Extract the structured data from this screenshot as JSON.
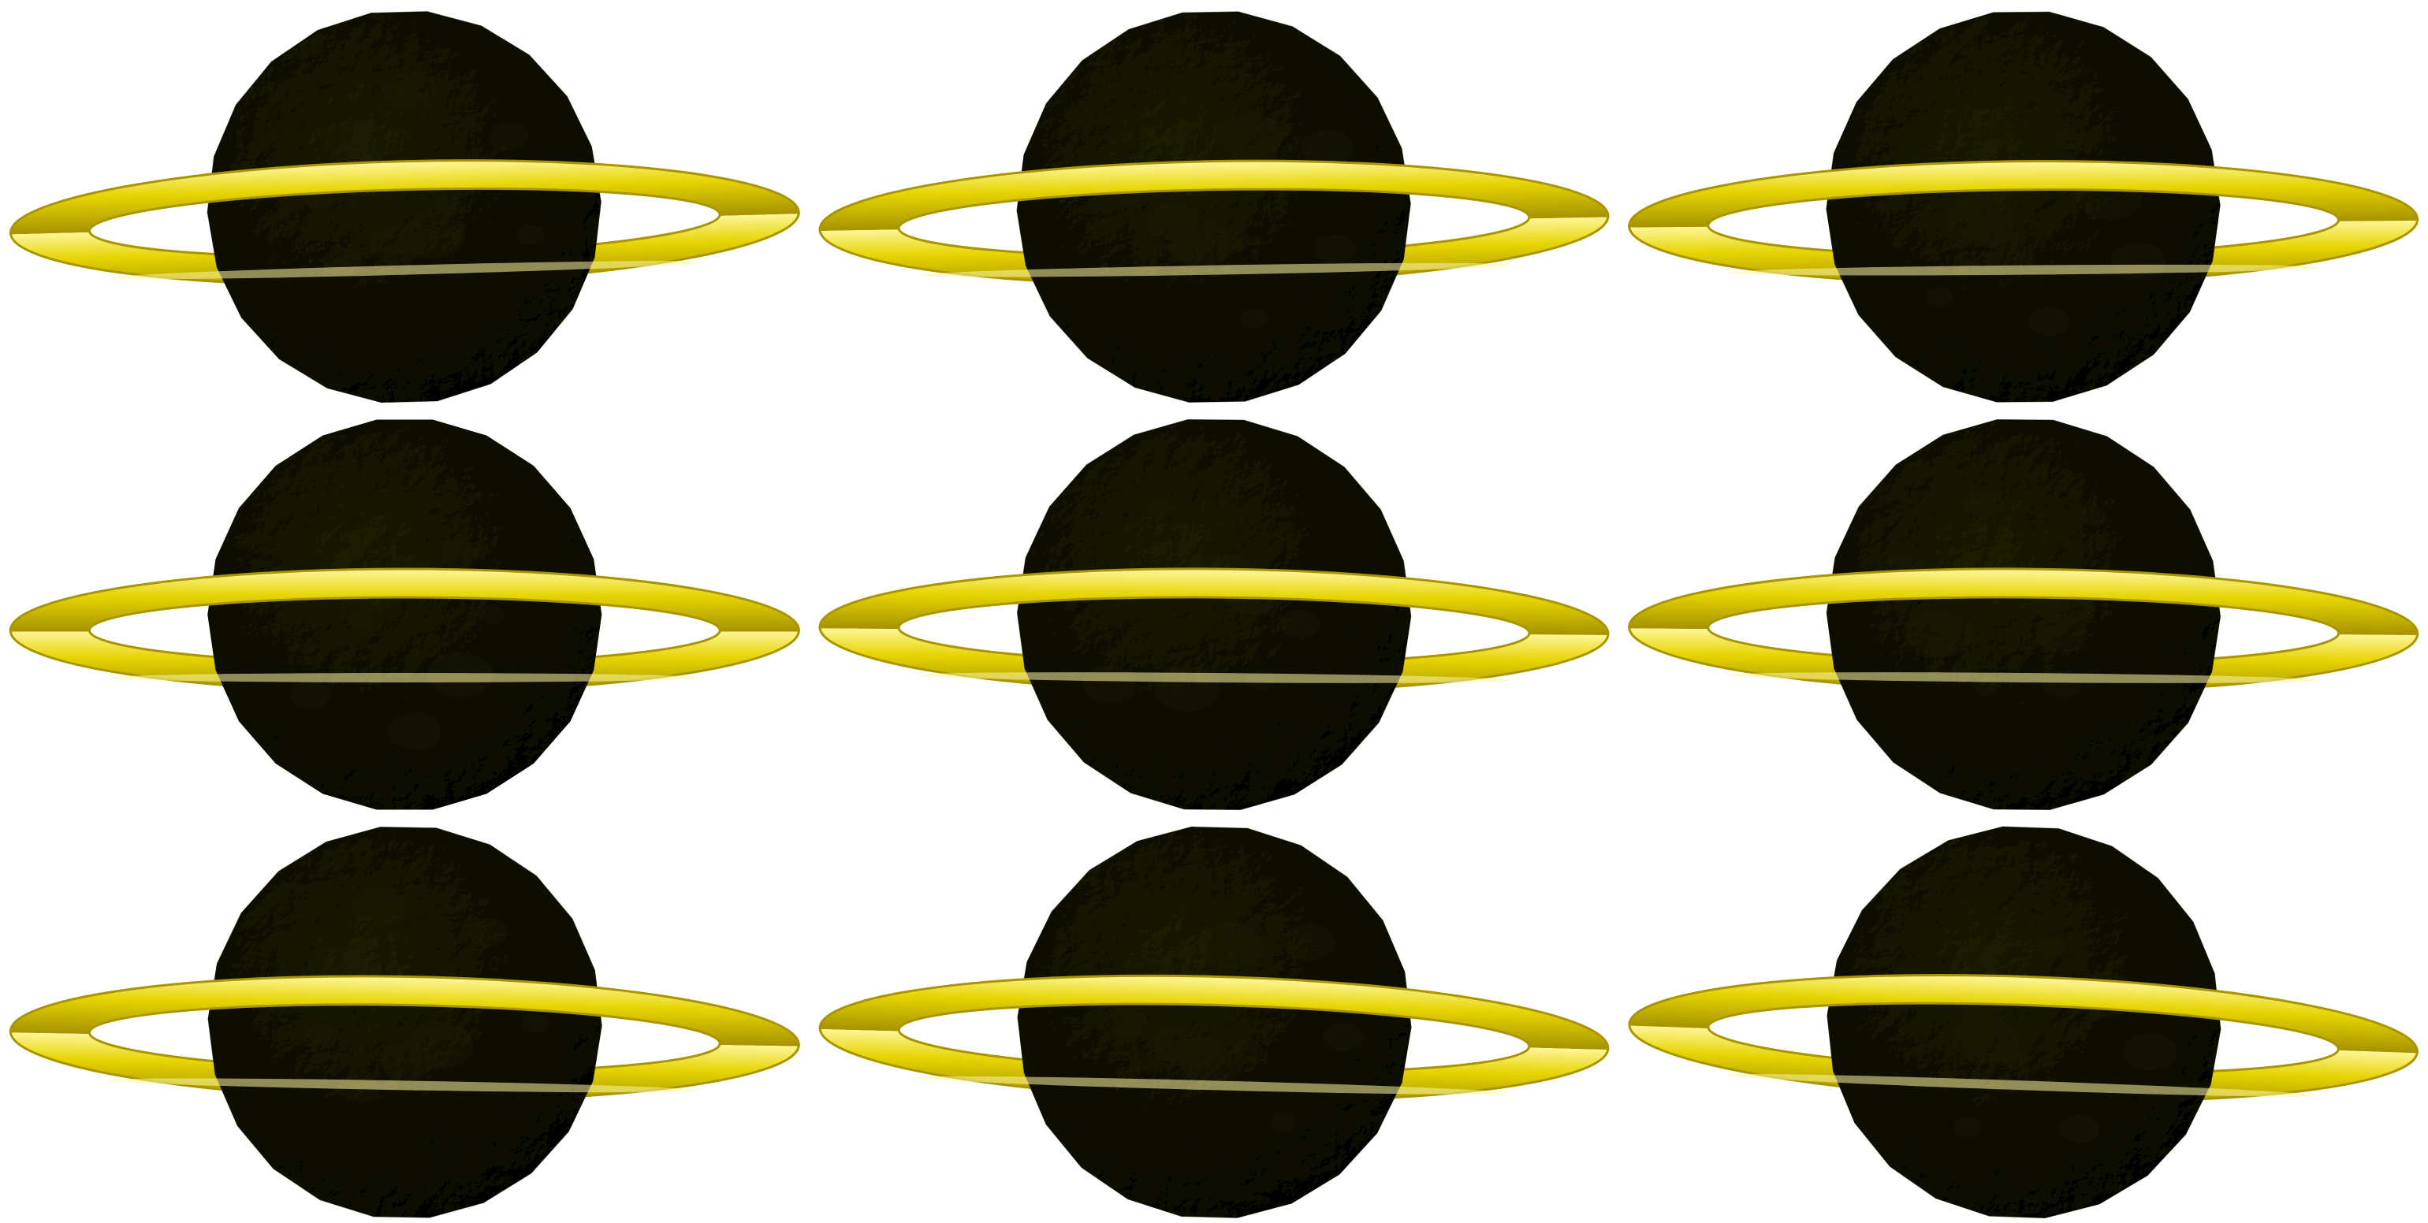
{
  "scene": {
    "description_name": "ringed-planet-grid",
    "rows": 3,
    "columns": 3,
    "background_color": "#ffffff",
    "planet": {
      "base_color": "#3a3a10",
      "highlight_color": "#5c5c1e",
      "shadow_color": "#1e1e06",
      "texture": "cratered"
    },
    "ring": {
      "base_color": "#e6d400",
      "highlight_color": "#fff7a0",
      "shadow_color": "#a89500"
    },
    "items": [
      {
        "row": 1,
        "col": 1,
        "ring_tilt_deg": -1.5
      },
      {
        "row": 1,
        "col": 2,
        "ring_tilt_deg": -1.0
      },
      {
        "row": 1,
        "col": 3,
        "ring_tilt_deg": -0.5
      },
      {
        "row": 2,
        "col": 1,
        "ring_tilt_deg": 0.0
      },
      {
        "row": 2,
        "col": 2,
        "ring_tilt_deg": 0.5
      },
      {
        "row": 2,
        "col": 3,
        "ring_tilt_deg": 0.5
      },
      {
        "row": 3,
        "col": 1,
        "ring_tilt_deg": 1.0
      },
      {
        "row": 3,
        "col": 2,
        "ring_tilt_deg": 1.5
      },
      {
        "row": 3,
        "col": 3,
        "ring_tilt_deg": 2.0
      }
    ]
  }
}
